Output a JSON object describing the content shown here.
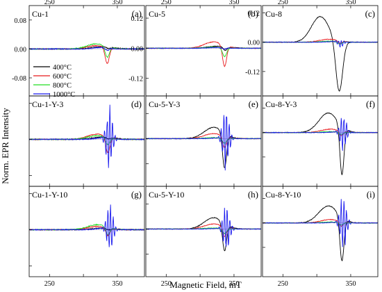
{
  "figure": {
    "xlabel": "Magnetic Field, mT",
    "ylabel": "Norm. EPR Intensity"
  },
  "series_colors": {
    "400": "#000000",
    "600": "#e8191b",
    "800": "#22dd22",
    "1000": "#1a1aee"
  },
  "legend_entries": [
    "400°C",
    "600°C",
    "800°C",
    "1000°C"
  ],
  "x_ticks": [
    "250",
    "350"
  ],
  "chart_data": [
    {
      "type": "line",
      "name": "Cu-1",
      "tag": "(a)",
      "xlim": [
        220,
        390
      ],
      "ylim": [
        -0.13,
        0.12
      ],
      "yticks": [
        {
          "value": 0.08,
          "label": "0.08"
        },
        {
          "value": 0.0,
          "label": "0.00"
        },
        {
          "value": -0.08,
          "label": "-0.08"
        }
      ],
      "legend": "left",
      "series": [
        {
          "name": "400°C",
          "center": 337,
          "pos_amp": 0.006,
          "neg_amp": 0.004,
          "pos_width": 16,
          "neg_width": 3,
          "pos_offset": 8,
          "spike": 0
        },
        {
          "name": "600°C",
          "center": 335,
          "pos_amp": 0.009,
          "neg_amp": 0.045,
          "pos_width": 14,
          "neg_width": 3,
          "pos_offset": 16,
          "spike": 0
        },
        {
          "name": "800°C",
          "center": 335,
          "pos_amp": 0.014,
          "neg_amp": 0.03,
          "pos_width": 14,
          "neg_width": 3,
          "pos_offset": 16,
          "spike": 0
        },
        {
          "name": "1000°C",
          "center": 335,
          "pos_amp": 0.004,
          "neg_amp": 0.006,
          "pos_width": 10,
          "neg_width": 3,
          "pos_offset": 10,
          "spike": 0
        }
      ]
    },
    {
      "type": "line",
      "name": "Cu-1-Y-3",
      "tag": "(d)",
      "xlim": [
        220,
        390
      ],
      "ylim": [
        -0.13,
        0.12
      ],
      "yticks": [],
      "legend": "none",
      "series": [
        {
          "name": "400°C",
          "center": 337,
          "pos_amp": 0.006,
          "neg_amp": 0.004,
          "pos_width": 16,
          "neg_width": 3,
          "pos_offset": 8,
          "spike": 0
        },
        {
          "name": "600°C",
          "center": 336,
          "pos_amp": 0.014,
          "neg_amp": 0.045,
          "pos_width": 14,
          "neg_width": 3,
          "pos_offset": 16,
          "spike": 0
        },
        {
          "name": "800°C",
          "center": 336,
          "pos_amp": 0.01,
          "neg_amp": 0.02,
          "pos_width": 14,
          "neg_width": 3,
          "pos_offset": 16,
          "spike": 0
        },
        {
          "name": "1000°C",
          "center": 338,
          "pos_amp": 0.004,
          "neg_amp": 0.0,
          "pos_width": 10,
          "neg_width": 3,
          "pos_offset": 10,
          "spike": 0.095
        }
      ]
    },
    {
      "type": "line",
      "name": "Cu-1-Y-10",
      "tag": "(g)",
      "xlim": [
        220,
        390
      ],
      "ylim": [
        -0.13,
        0.12
      ],
      "yticks": [],
      "legend": "none",
      "series": [
        {
          "name": "400°C",
          "center": 337,
          "pos_amp": 0.004,
          "neg_amp": 0.004,
          "pos_width": 16,
          "neg_width": 3,
          "pos_offset": 8,
          "spike": 0
        },
        {
          "name": "600°C",
          "center": 336,
          "pos_amp": 0.009,
          "neg_amp": 0.02,
          "pos_width": 14,
          "neg_width": 3,
          "pos_offset": 16,
          "spike": 0
        },
        {
          "name": "800°C",
          "center": 336,
          "pos_amp": 0.014,
          "neg_amp": 0.02,
          "pos_width": 14,
          "neg_width": 3,
          "pos_offset": 16,
          "spike": 0
        },
        {
          "name": "1000°C",
          "center": 339,
          "pos_amp": 0.004,
          "neg_amp": 0.0,
          "pos_width": 10,
          "neg_width": 3,
          "pos_offset": 10,
          "spike": 0.07
        }
      ]
    },
    {
      "type": "line",
      "name": "Cu-5",
      "tag": "(b)",
      "xlim": [
        220,
        390
      ],
      "ylim": [
        -0.19,
        0.17
      ],
      "yticks": [
        {
          "value": 0.12,
          "label": "0.12"
        },
        {
          "value": 0.0,
          "label": "0.00"
        },
        {
          "value": -0.12,
          "label": "-0.12"
        }
      ],
      "legend": "none",
      "series": [
        {
          "name": "400°C",
          "center": 337,
          "pos_amp": 0.008,
          "neg_amp": 0.015,
          "pos_width": 16,
          "neg_width": 3,
          "pos_offset": 10,
          "spike": 0
        },
        {
          "name": "600°C",
          "center": 336,
          "pos_amp": 0.025,
          "neg_amp": 0.085,
          "pos_width": 14,
          "neg_width": 3,
          "pos_offset": 16,
          "spike": 0
        },
        {
          "name": "800°C",
          "center": 336,
          "pos_amp": 0.004,
          "neg_amp": 0.035,
          "pos_width": 14,
          "neg_width": 3,
          "pos_offset": 16,
          "spike": 0
        },
        {
          "name": "1000°C",
          "center": 335,
          "pos_amp": 0.003,
          "neg_amp": 0.005,
          "pos_width": 10,
          "neg_width": 3,
          "pos_offset": 10,
          "spike": 0
        }
      ]
    },
    {
      "type": "line",
      "name": "Cu-5-Y-3",
      "tag": "(e)",
      "xlim": [
        220,
        390
      ],
      "ylim": [
        -0.19,
        0.17
      ],
      "yticks": [],
      "legend": "none",
      "series": [
        {
          "name": "400°C",
          "center": 336,
          "pos_amp": 0.045,
          "neg_amp": 0.14,
          "pos_width": 14,
          "neg_width": 3,
          "pos_offset": 16,
          "spike": 0
        },
        {
          "name": "600°C",
          "center": 336,
          "pos_amp": 0.02,
          "neg_amp": 0.045,
          "pos_width": 14,
          "neg_width": 3,
          "pos_offset": 16,
          "spike": 0
        },
        {
          "name": "800°C",
          "center": 336,
          "pos_amp": 0.004,
          "neg_amp": 0.02,
          "pos_width": 14,
          "neg_width": 3,
          "pos_offset": 16,
          "spike": 0
        },
        {
          "name": "1000°C",
          "center": 338,
          "pos_amp": 0.003,
          "neg_amp": 0.0,
          "pos_width": 10,
          "neg_width": 3,
          "pos_offset": 10,
          "spike": 0.14
        }
      ]
    },
    {
      "type": "line",
      "name": "Cu-5-Y-10",
      "tag": "(h)",
      "xlim": [
        220,
        390
      ],
      "ylim": [
        -0.19,
        0.17
      ],
      "yticks": [],
      "legend": "none",
      "series": [
        {
          "name": "400°C",
          "center": 336,
          "pos_amp": 0.045,
          "neg_amp": 0.11,
          "pos_width": 14,
          "neg_width": 3,
          "pos_offset": 16,
          "spike": 0
        },
        {
          "name": "600°C",
          "center": 336,
          "pos_amp": 0.02,
          "neg_amp": 0.04,
          "pos_width": 14,
          "neg_width": 3,
          "pos_offset": 16,
          "spike": 0
        },
        {
          "name": "800°C",
          "center": 336,
          "pos_amp": 0.004,
          "neg_amp": 0.02,
          "pos_width": 14,
          "neg_width": 3,
          "pos_offset": 16,
          "spike": 0
        },
        {
          "name": "1000°C",
          "center": 339,
          "pos_amp": 0.003,
          "neg_amp": 0.0,
          "pos_width": 10,
          "neg_width": 3,
          "pos_offset": 10,
          "spike": 0.11
        }
      ]
    },
    {
      "type": "line",
      "name": "Cu-8",
      "tag": "(c)",
      "xlim": [
        220,
        390
      ],
      "ylim": [
        -0.22,
        0.15
      ],
      "yticks": [
        {
          "value": 0.12,
          "label": "0.12"
        },
        {
          "value": 0.0,
          "label": "0.00"
        },
        {
          "value": -0.12,
          "label": "-0.12"
        }
      ],
      "legend": "none",
      "series": [
        {
          "name": "400°C",
          "center": 333,
          "pos_amp": 0.105,
          "neg_amp": 0.21,
          "pos_width": 13,
          "neg_width": 5,
          "pos_offset": 28,
          "spike": 0
        },
        {
          "name": "600°C",
          "center": 334,
          "pos_amp": 0.012,
          "neg_amp": 0.01,
          "pos_width": 14,
          "neg_width": 3,
          "pos_offset": 16,
          "spike": 0
        },
        {
          "name": "800°C",
          "center": 334,
          "pos_amp": 0.004,
          "neg_amp": 0.01,
          "pos_width": 14,
          "neg_width": 3,
          "pos_offset": 16,
          "spike": 0
        },
        {
          "name": "1000°C",
          "center": 335,
          "pos_amp": 0.003,
          "neg_amp": 0.01,
          "pos_width": 10,
          "neg_width": 3,
          "pos_offset": 10,
          "spike": 0.015
        }
      ]
    },
    {
      "type": "line",
      "name": "Cu-8-Y-3",
      "tag": "(f)",
      "xlim": [
        220,
        390
      ],
      "ylim": [
        -0.22,
        0.15
      ],
      "yticks": [],
      "legend": "none",
      "series": [
        {
          "name": "400°C",
          "center": 337,
          "pos_amp": 0.08,
          "neg_amp": 0.2,
          "pos_width": 14,
          "neg_width": 3,
          "pos_offset": 20,
          "spike": 0
        },
        {
          "name": "600°C",
          "center": 336,
          "pos_amp": 0.014,
          "neg_amp": 0.02,
          "pos_width": 14,
          "neg_width": 3,
          "pos_offset": 16,
          "spike": 0
        },
        {
          "name": "800°C",
          "center": 336,
          "pos_amp": 0.004,
          "neg_amp": 0.01,
          "pos_width": 14,
          "neg_width": 3,
          "pos_offset": 16,
          "spike": 0
        },
        {
          "name": "1000°C",
          "center": 339,
          "pos_amp": 0.003,
          "neg_amp": 0.0,
          "pos_width": 10,
          "neg_width": 3,
          "pos_offset": 10,
          "spike": 0.085
        }
      ]
    },
    {
      "type": "line",
      "name": "Cu-8-Y-10",
      "tag": "(i)",
      "xlim": [
        220,
        390
      ],
      "ylim": [
        -0.22,
        0.15
      ],
      "yticks": [],
      "legend": "none",
      "series": [
        {
          "name": "400°C",
          "center": 337,
          "pos_amp": 0.07,
          "neg_amp": 0.18,
          "pos_width": 14,
          "neg_width": 3,
          "pos_offset": 20,
          "spike": 0
        },
        {
          "name": "600°C",
          "center": 336,
          "pos_amp": 0.014,
          "neg_amp": 0.02,
          "pos_width": 14,
          "neg_width": 3,
          "pos_offset": 16,
          "spike": 0
        },
        {
          "name": "800°C",
          "center": 336,
          "pos_amp": 0.004,
          "neg_amp": 0.01,
          "pos_width": 14,
          "neg_width": 3,
          "pos_offset": 16,
          "spike": 0
        },
        {
          "name": "1000°C",
          "center": 339,
          "pos_amp": 0.003,
          "neg_amp": 0.0,
          "pos_width": 10,
          "neg_width": 3,
          "pos_offset": 10,
          "spike": 0.12
        }
      ]
    }
  ]
}
